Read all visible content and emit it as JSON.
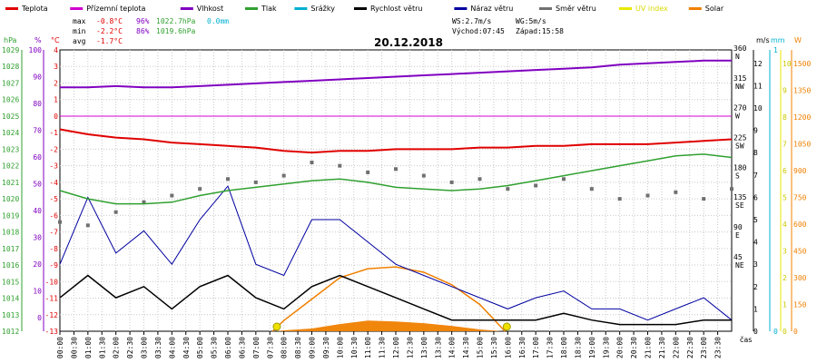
{
  "chart_data": {
    "type": "line",
    "title": "20.12.2018",
    "legend": [
      {
        "name": "Teplota",
        "color": "#e00000"
      },
      {
        "name": "Přízemní teplota",
        "color": "#d000d0"
      },
      {
        "name": "Vlhkost",
        "color": "#8000c0"
      },
      {
        "name": "Tlak",
        "color": "#30a030"
      },
      {
        "name": "Srážky",
        "color": "#00b0d0"
      },
      {
        "name": "Rychlost větru",
        "color": "#000000"
      },
      {
        "name": "Náraz větru",
        "color": "#0000a0"
      },
      {
        "name": "Směr větru",
        "color": "#707070"
      },
      {
        "name": "UV index",
        "color": "#e8e800"
      },
      {
        "name": "Solar",
        "color": "#f08000"
      }
    ],
    "stats": {
      "max": {
        "label": "max",
        "temp": "-0.8°C",
        "hum": "96%",
        "press": "1022.7hPa",
        "rain": "0.0mm"
      },
      "min": {
        "label": "min",
        "temp": "-2.2°C",
        "hum": "86%",
        "press": "1019.6hPa"
      },
      "avg": {
        "label": "avg",
        "temp": "-1.7°C"
      },
      "ws": "WS:2.7m/s",
      "wg": "WG:5m/s",
      "sunrise": "Východ:07:45",
      "sunset": "Západ:15:58"
    },
    "axes": {
      "hpa": {
        "unit": "hPa",
        "ticks": [
          "1029",
          "1028",
          "1027",
          "1026",
          "1025",
          "1024",
          "1023",
          "1022",
          "1021",
          "1020",
          "1019",
          "1018",
          "1017",
          "1016",
          "1015",
          "1014",
          "1013",
          "1012"
        ]
      },
      "pct": {
        "unit": "%",
        "ticks": [
          "100",
          "90",
          "80",
          "70",
          "60",
          "50",
          "40",
          "30",
          "20",
          "10",
          "0"
        ]
      },
      "temp": {
        "unit": "°C",
        "ticks": [
          "4",
          "3",
          "2",
          "1",
          "0",
          "-1",
          "-2",
          "-3",
          "-4",
          "-5",
          "-6",
          "-7",
          "-8",
          "-9",
          "-10",
          "-11",
          "-12",
          "-13"
        ]
      },
      "dir": {
        "ticks": [
          {
            "deg": "360",
            "lbl": "N"
          },
          {
            "deg": "315",
            "lbl": "NW"
          },
          {
            "deg": "270",
            "lbl": "W"
          },
          {
            "deg": "225",
            "lbl": "SW"
          },
          {
            "deg": "180",
            "lbl": "S"
          },
          {
            "deg": "135",
            "lbl": "SE"
          },
          {
            "deg": "90",
            "lbl": "E"
          },
          {
            "deg": "45",
            "lbl": "NE"
          }
        ]
      },
      "ms": {
        "unit": "m/s",
        "ticks": [
          "12",
          "11",
          "10",
          "9",
          "8",
          "7",
          "6",
          "5",
          "4",
          "3",
          "2",
          "1",
          "0"
        ]
      },
      "mm": {
        "unit": "mm",
        "ticks": [
          "1",
          "0"
        ]
      },
      "uv": {
        "ticks": [
          "10",
          "9",
          "8",
          "7",
          "6",
          "5",
          "4",
          "3",
          "2",
          "1",
          "0"
        ]
      },
      "w": {
        "unit": "W",
        "ticks": [
          "1500",
          "1350",
          "1200",
          "1050",
          "900",
          "750",
          "600",
          "450",
          "300",
          "150",
          "0"
        ]
      },
      "x_label": "čas",
      "x_ticks": [
        "00:00",
        "00:30",
        "01:00",
        "01:30",
        "02:00",
        "02:30",
        "03:00",
        "03:30",
        "04:00",
        "04:30",
        "05:00",
        "05:30",
        "06:00",
        "06:30",
        "07:00",
        "07:30",
        "08:00",
        "08:30",
        "09:00",
        "09:30",
        "10:00",
        "10:30",
        "11:00",
        "11:30",
        "12:00",
        "12:30",
        "13:00",
        "13:30",
        "14:00",
        "14:30",
        "15:00",
        "15:30",
        "16:00",
        "16:30",
        "17:00",
        "17:30",
        "18:00",
        "18:30",
        "19:00",
        "19:30",
        "20:00",
        "20:30",
        "21:00",
        "21:30",
        "22:00",
        "22:30",
        "23:00",
        "23:30"
      ]
    },
    "series": {
      "temperature_c": [
        [
          0,
          -0.8
        ],
        [
          1,
          -1.1
        ],
        [
          2,
          -1.3
        ],
        [
          3,
          -1.4
        ],
        [
          4,
          -1.6
        ],
        [
          5,
          -1.7
        ],
        [
          6,
          -1.8
        ],
        [
          7,
          -1.9
        ],
        [
          8,
          -2.1
        ],
        [
          9,
          -2.2
        ],
        [
          10,
          -2.1
        ],
        [
          11,
          -2.1
        ],
        [
          12,
          -2.0
        ],
        [
          13,
          -2.0
        ],
        [
          14,
          -2.0
        ],
        [
          15,
          -1.9
        ],
        [
          16,
          -1.9
        ],
        [
          17,
          -1.8
        ],
        [
          18,
          -1.8
        ],
        [
          19,
          -1.7
        ],
        [
          20,
          -1.7
        ],
        [
          21,
          -1.7
        ],
        [
          22,
          -1.6
        ],
        [
          23,
          -1.5
        ],
        [
          24,
          -1.4
        ]
      ],
      "humidity_pct": [
        [
          0,
          86
        ],
        [
          1,
          86
        ],
        [
          2,
          86.5
        ],
        [
          3,
          86
        ],
        [
          4,
          86
        ],
        [
          5,
          86.5
        ],
        [
          6,
          87
        ],
        [
          7,
          87.5
        ],
        [
          8,
          88
        ],
        [
          9,
          88.5
        ],
        [
          10,
          89
        ],
        [
          11,
          89.5
        ],
        [
          12,
          90
        ],
        [
          13,
          90.5
        ],
        [
          14,
          91
        ],
        [
          15,
          91.5
        ],
        [
          16,
          92
        ],
        [
          17,
          92.5
        ],
        [
          18,
          93
        ],
        [
          19,
          93.5
        ],
        [
          20,
          94.5
        ],
        [
          21,
          95
        ],
        [
          22,
          95.5
        ],
        [
          23,
          96
        ],
        [
          24,
          96
        ]
      ],
      "pressure_hpa": [
        [
          0,
          1020.5
        ],
        [
          1,
          1020.0
        ],
        [
          2,
          1019.7
        ],
        [
          3,
          1019.7
        ],
        [
          4,
          1019.8
        ],
        [
          5,
          1020.2
        ],
        [
          6,
          1020.5
        ],
        [
          7,
          1020.7
        ],
        [
          8,
          1020.9
        ],
        [
          9,
          1021.1
        ],
        [
          10,
          1021.2
        ],
        [
          11,
          1021.0
        ],
        [
          12,
          1020.7
        ],
        [
          13,
          1020.6
        ],
        [
          14,
          1020.5
        ],
        [
          15,
          1020.6
        ],
        [
          16,
          1020.8
        ],
        [
          17,
          1021.1
        ],
        [
          18,
          1021.4
        ],
        [
          19,
          1021.7
        ],
        [
          20,
          1022.0
        ],
        [
          21,
          1022.3
        ],
        [
          22,
          1022.6
        ],
        [
          23,
          1022.7
        ],
        [
          24,
          1022.5
        ]
      ],
      "wind_speed_ms": [
        [
          0,
          1.5
        ],
        [
          1,
          2.5
        ],
        [
          2,
          1.5
        ],
        [
          3,
          2.0
        ],
        [
          4,
          1.0
        ],
        [
          5,
          2.0
        ],
        [
          6,
          2.5
        ],
        [
          7,
          1.5
        ],
        [
          8,
          1.0
        ],
        [
          9,
          2.0
        ],
        [
          10,
          2.5
        ],
        [
          11,
          2.0
        ],
        [
          12,
          1.5
        ],
        [
          13,
          1.0
        ],
        [
          14,
          0.5
        ],
        [
          15,
          0.5
        ],
        [
          16,
          0.5
        ],
        [
          17,
          0.5
        ],
        [
          18,
          0.8
        ],
        [
          19,
          0.5
        ],
        [
          20,
          0.3
        ],
        [
          21,
          0.3
        ],
        [
          22,
          0.3
        ],
        [
          23,
          0.5
        ],
        [
          24,
          0.5
        ]
      ],
      "wind_gust_ms": [
        [
          0,
          3.0
        ],
        [
          1,
          6.0
        ],
        [
          2,
          3.5
        ],
        [
          3,
          4.5
        ],
        [
          4,
          3.0
        ],
        [
          5,
          5.0
        ],
        [
          6,
          6.5
        ],
        [
          7,
          3.0
        ],
        [
          8,
          2.5
        ],
        [
          9,
          5.0
        ],
        [
          10,
          5.0
        ],
        [
          11,
          4.0
        ],
        [
          12,
          3.0
        ],
        [
          13,
          2.5
        ],
        [
          14,
          2.0
        ],
        [
          15,
          1.5
        ],
        [
          16,
          1.0
        ],
        [
          17,
          1.5
        ],
        [
          18,
          1.8
        ],
        [
          19,
          1.0
        ],
        [
          20,
          1.0
        ],
        [
          21,
          0.5
        ],
        [
          22,
          1.0
        ],
        [
          23,
          1.5
        ],
        [
          24,
          0.5
        ]
      ],
      "wind_dir_deg": [
        [
          0,
          100
        ],
        [
          1,
          95
        ],
        [
          2,
          115
        ],
        [
          3,
          130
        ],
        [
          4,
          140
        ],
        [
          5,
          150
        ],
        [
          6,
          165
        ],
        [
          7,
          160
        ],
        [
          8,
          170
        ],
        [
          9,
          190
        ],
        [
          10,
          185
        ],
        [
          11,
          175
        ],
        [
          12,
          180
        ],
        [
          13,
          170
        ],
        [
          14,
          160
        ],
        [
          15,
          165
        ],
        [
          16,
          150
        ],
        [
          17,
          155
        ],
        [
          18,
          165
        ],
        [
          19,
          150
        ],
        [
          20,
          135
        ],
        [
          21,
          140
        ],
        [
          22,
          145
        ],
        [
          23,
          135
        ],
        [
          24,
          150
        ]
      ],
      "solar_w": [
        [
          7.6,
          0
        ],
        [
          8,
          60
        ],
        [
          9,
          180
        ],
        [
          10,
          300
        ],
        [
          11,
          350
        ],
        [
          12,
          360
        ],
        [
          13,
          330
        ],
        [
          14,
          260
        ],
        [
          15,
          150
        ],
        [
          15.9,
          0
        ]
      ],
      "solar_actual_w": [
        [
          7.7,
          0
        ],
        [
          8,
          5
        ],
        [
          9,
          15
        ],
        [
          10,
          40
        ],
        [
          11,
          60
        ],
        [
          12,
          55
        ],
        [
          13,
          45
        ],
        [
          14,
          30
        ],
        [
          15,
          10
        ],
        [
          15.8,
          0
        ]
      ]
    }
  }
}
